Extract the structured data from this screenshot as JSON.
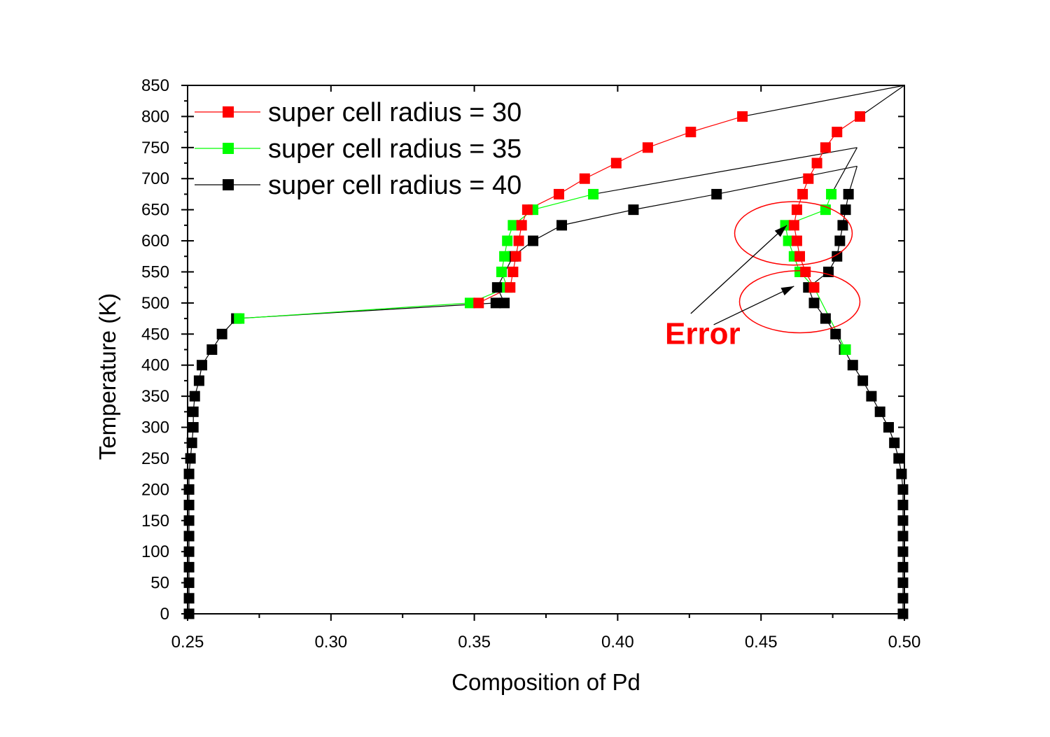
{
  "chart_data": {
    "type": "scatter",
    "title": "",
    "xlabel": "Composition of Pd",
    "ylabel": "Temperature (K)",
    "xlim": [
      0.25,
      0.5
    ],
    "ylim": [
      0,
      850
    ],
    "x_ticks": [
      "0.25",
      "0.30",
      "0.35",
      "0.40",
      "0.45",
      "0.50"
    ],
    "y_ticks": [
      "0",
      "50",
      "100",
      "150",
      "200",
      "250",
      "300",
      "350",
      "400",
      "450",
      "500",
      "550",
      "600",
      "650",
      "700",
      "750",
      "800",
      "850"
    ],
    "grid": false,
    "legend_position": "top-left",
    "series": [
      {
        "name": "super cell radius = 30",
        "color": "#ff0000",
        "marker": "square",
        "branches": [
          [
            {
              "x": 0.3515,
              "y": 500
            },
            {
              "x": 0.3625,
              "y": 525
            },
            {
              "x": 0.3635,
              "y": 550
            },
            {
              "x": 0.3645,
              "y": 575
            },
            {
              "x": 0.3655,
              "y": 600
            },
            {
              "x": 0.3665,
              "y": 625
            },
            {
              "x": 0.3685,
              "y": 650
            },
            {
              "x": 0.3795,
              "y": 675
            },
            {
              "x": 0.3885,
              "y": 700
            },
            {
              "x": 0.3995,
              "y": 725
            },
            {
              "x": 0.4105,
              "y": 750
            },
            {
              "x": 0.4255,
              "y": 775
            },
            {
              "x": 0.4435,
              "y": 800
            }
          ],
          [
            {
              "x": 0.4845,
              "y": 800
            },
            {
              "x": 0.4765,
              "y": 775
            },
            {
              "x": 0.4725,
              "y": 750
            },
            {
              "x": 0.4695,
              "y": 725
            },
            {
              "x": 0.4665,
              "y": 700
            },
            {
              "x": 0.4645,
              "y": 675
            },
            {
              "x": 0.4625,
              "y": 650
            },
            {
              "x": 0.4615,
              "y": 625
            },
            {
              "x": 0.4625,
              "y": 600
            },
            {
              "x": 0.4635,
              "y": 575
            },
            {
              "x": 0.4655,
              "y": 550
            },
            {
              "x": 0.4685,
              "y": 525
            }
          ]
        ],
        "connectors": [
          [
            {
              "x": 0.4435,
              "y": 800
            },
            {
              "x": 0.5,
              "y": 850
            }
          ],
          [
            {
              "x": 0.4845,
              "y": 800
            },
            {
              "x": 0.5,
              "y": 850
            }
          ]
        ]
      },
      {
        "name": "super cell radius = 35",
        "color": "#00ff00",
        "marker": "square",
        "branches": [
          [
            {
              "x": 0.268,
              "y": 475
            },
            {
              "x": 0.3485,
              "y": 500
            },
            {
              "x": 0.3615,
              "y": 525
            },
            {
              "x": 0.3595,
              "y": 550
            },
            {
              "x": 0.3605,
              "y": 575
            },
            {
              "x": 0.3615,
              "y": 600
            },
            {
              "x": 0.3635,
              "y": 625
            },
            {
              "x": 0.3705,
              "y": 650
            },
            {
              "x": 0.3915,
              "y": 675
            }
          ],
          [
            {
              "x": 0.4745,
              "y": 675
            },
            {
              "x": 0.4725,
              "y": 650
            },
            {
              "x": 0.4585,
              "y": 625
            },
            {
              "x": 0.4595,
              "y": 600
            },
            {
              "x": 0.4615,
              "y": 575
            },
            {
              "x": 0.4635,
              "y": 550
            },
            {
              "x": 0.4685,
              "y": 525
            },
            {
              "x": 0.4795,
              "y": 425
            }
          ]
        ],
        "connectors": [
          [
            {
              "x": 0.3915,
              "y": 675
            },
            {
              "x": 0.4835,
              "y": 750
            }
          ],
          [
            {
              "x": 0.4745,
              "y": 675
            },
            {
              "x": 0.4835,
              "y": 750
            }
          ]
        ]
      },
      {
        "name": "super cell radius = 40",
        "color": "#000000",
        "marker": "square",
        "branches": [
          [
            {
              "x": 0.2505,
              "y": 0
            },
            {
              "x": 0.2505,
              "y": 25
            },
            {
              "x": 0.2505,
              "y": 50
            },
            {
              "x": 0.2505,
              "y": 75
            },
            {
              "x": 0.2505,
              "y": 100
            },
            {
              "x": 0.2505,
              "y": 125
            },
            {
              "x": 0.2505,
              "y": 150
            },
            {
              "x": 0.2505,
              "y": 175
            },
            {
              "x": 0.2505,
              "y": 200
            },
            {
              "x": 0.2505,
              "y": 225
            },
            {
              "x": 0.251,
              "y": 250
            },
            {
              "x": 0.2515,
              "y": 275
            },
            {
              "x": 0.252,
              "y": 300
            },
            {
              "x": 0.252,
              "y": 325
            },
            {
              "x": 0.2525,
              "y": 350
            },
            {
              "x": 0.254,
              "y": 375
            },
            {
              "x": 0.255,
              "y": 400
            },
            {
              "x": 0.2585,
              "y": 425
            },
            {
              "x": 0.262,
              "y": 450
            },
            {
              "x": 0.267,
              "y": 475
            },
            {
              "x": 0.3575,
              "y": 500
            },
            {
              "x": 0.3605,
              "y": 500
            },
            {
              "x": 0.358,
              "y": 525
            },
            {
              "x": 0.3635,
              "y": 575
            },
            {
              "x": 0.3705,
              "y": 600
            },
            {
              "x": 0.3805,
              "y": 625
            },
            {
              "x": 0.4055,
              "y": 650
            },
            {
              "x": 0.4345,
              "y": 675
            }
          ],
          [
            {
              "x": 0.4805,
              "y": 675
            },
            {
              "x": 0.4795,
              "y": 650
            },
            {
              "x": 0.4785,
              "y": 625
            },
            {
              "x": 0.4775,
              "y": 600
            },
            {
              "x": 0.4765,
              "y": 575
            },
            {
              "x": 0.4735,
              "y": 550
            },
            {
              "x": 0.4665,
              "y": 525
            },
            {
              "x": 0.4685,
              "y": 500
            },
            {
              "x": 0.4725,
              "y": 475
            },
            {
              "x": 0.476,
              "y": 450
            },
            {
              "x": 0.479,
              "y": 425
            },
            {
              "x": 0.482,
              "y": 400
            },
            {
              "x": 0.4855,
              "y": 375
            },
            {
              "x": 0.4885,
              "y": 350
            },
            {
              "x": 0.4915,
              "y": 325
            },
            {
              "x": 0.4945,
              "y": 300
            },
            {
              "x": 0.4965,
              "y": 275
            },
            {
              "x": 0.498,
              "y": 250
            },
            {
              "x": 0.499,
              "y": 225
            },
            {
              "x": 0.4995,
              "y": 200
            },
            {
              "x": 0.4995,
              "y": 175
            },
            {
              "x": 0.4995,
              "y": 150
            },
            {
              "x": 0.4995,
              "y": 125
            },
            {
              "x": 0.4995,
              "y": 100
            },
            {
              "x": 0.4995,
              "y": 75
            },
            {
              "x": 0.4995,
              "y": 50
            },
            {
              "x": 0.4995,
              "y": 25
            },
            {
              "x": 0.4995,
              "y": 0
            }
          ]
        ],
        "connectors": [
          [
            {
              "x": 0.4345,
              "y": 675
            },
            {
              "x": 0.4835,
              "y": 720
            }
          ],
          [
            {
              "x": 0.4805,
              "y": 675
            },
            {
              "x": 0.4835,
              "y": 720
            }
          ]
        ]
      }
    ],
    "annotations": [
      {
        "text": "Error",
        "color": "#ff0000",
        "label_at": {
          "x": 0.4165,
          "y": 452
        },
        "ellipses": [
          {
            "cx": 0.4613,
            "cy": 612,
            "rx": 0.0205,
            "ry": 51
          },
          {
            "cx": 0.4635,
            "cy": 502,
            "rx": 0.021,
            "ry": 50
          }
        ],
        "arrows": [
          {
            "from": {
              "x": 0.4255,
              "y": 483
            },
            "to": {
              "x": 0.459,
              "y": 625
            }
          },
          {
            "from": {
              "x": 0.4335,
              "y": 465
            },
            "to": {
              "x": 0.4615,
              "y": 527
            }
          }
        ]
      }
    ]
  }
}
